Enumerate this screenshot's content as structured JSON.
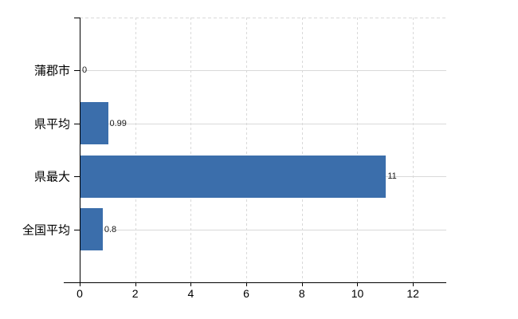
{
  "chart_data": {
    "type": "bar",
    "orientation": "horizontal",
    "title": "",
    "xlabel": "",
    "ylabel": "",
    "categories": [
      "蒲郡市",
      "県平均",
      "県最大",
      "全国平均"
    ],
    "values": [
      0,
      0.99,
      11,
      0.8
    ],
    "value_labels": [
      "0",
      "0.99",
      "11",
      "0.8"
    ],
    "xlim": [
      0,
      13.2
    ],
    "xtick_values": [
      0,
      2,
      4,
      6,
      8,
      10,
      12
    ],
    "xtick_labels": [
      "0",
      "2",
      "4",
      "6",
      "8",
      "10",
      "12"
    ],
    "grid": "both",
    "grid_vertical_style": "dashed",
    "grid_horizontal_style": "solid",
    "legend_position": "none",
    "colors": {
      "bar": "#3b6eab",
      "grid": "#d9d9d9",
      "axis": "#000000",
      "text": "#000000",
      "value_label": "#1a1a1a",
      "background": "#ffffff"
    }
  }
}
